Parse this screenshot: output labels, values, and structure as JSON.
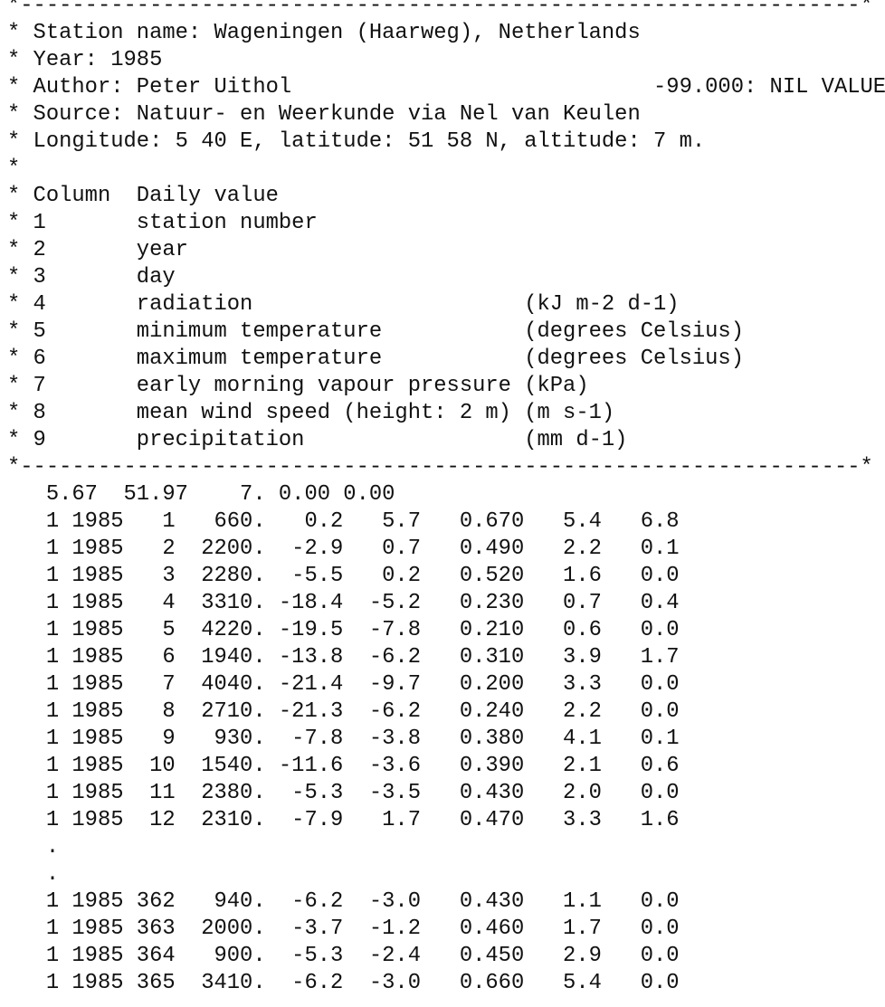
{
  "document": {
    "header_lines": [
      "*-----------------------------------------------------------------*",
      "* Station name: Wageningen (Haarweg), Netherlands",
      "* Year: 1985",
      "* Author: Peter Uithol                            -99.000: NIL VALUE",
      "* Source: Natuur- en Weerkunde via Nel van Keulen",
      "* Longitude: 5 40 E, latitude: 51 58 N, altitude: 7 m.",
      "*",
      "* Column  Daily value",
      "* 1       station number",
      "* 2       year",
      "* 3       day",
      "* 4       radiation                     (kJ m-2 d-1)",
      "* 5       minimum temperature           (degrees Celsius)",
      "* 6       maximum temperature           (degrees Celsius)",
      "* 7       early morning vapour pressure (kPa)",
      "* 8       mean wind speed (height: 2 m) (m s-1)",
      "* 9       precipitation                 (mm d-1)",
      "*-----------------------------------------------------------------*"
    ],
    "data_lines": [
      "   5.67  51.97    7. 0.00 0.00",
      "   1 1985   1   660.   0.2   5.7   0.670   5.4   6.8",
      "   1 1985   2  2200.  -2.9   0.7   0.490   2.2   0.1",
      "   1 1985   3  2280.  -5.5   0.2   0.520   1.6   0.0",
      "   1 1985   4  3310. -18.4  -5.2   0.230   0.7   0.4",
      "   1 1985   5  4220. -19.5  -7.8   0.210   0.6   0.0",
      "   1 1985   6  1940. -13.8  -6.2   0.310   3.9   1.7",
      "   1 1985   7  4040. -21.4  -9.7   0.200   3.3   0.0",
      "   1 1985   8  2710. -21.3  -6.2   0.240   2.2   0.0",
      "   1 1985   9   930.  -7.8  -3.8   0.380   4.1   0.1",
      "   1 1985  10  1540. -11.6  -3.6   0.390   2.1   0.6",
      "   1 1985  11  2380.  -5.3  -3.5   0.430   2.0   0.0",
      "   1 1985  12  2310.  -7.9   1.7   0.470   3.3   1.6",
      "   .",
      "   .",
      "   1 1985 362   940.  -6.2  -3.0   0.430   1.1   0.0",
      "   1 1985 363  2000.  -3.7  -1.2   0.460   1.7   0.0",
      "   1 1985 364   900.  -5.3  -2.4   0.450   2.9   0.0",
      "   1 1985 365  3410.  -6.2  -3.0   0.660   5.4   0.0"
    ]
  }
}
